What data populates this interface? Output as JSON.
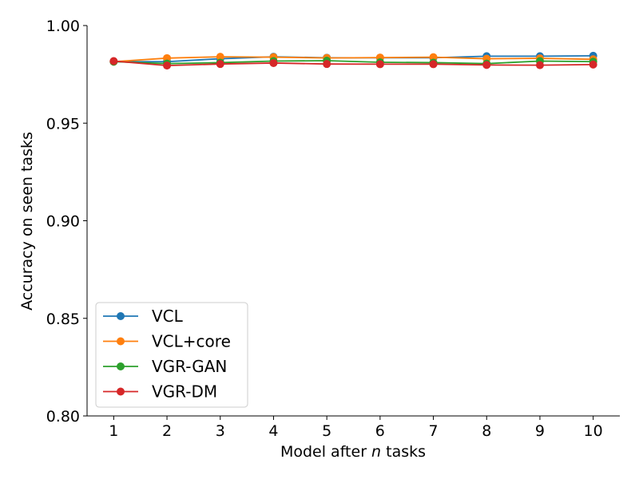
{
  "chart_data": {
    "type": "line",
    "title": "",
    "xlabel_prefix": "Model after ",
    "xlabel_var": "n",
    "xlabel_suffix": " tasks",
    "ylabel": "Accuracy on seen tasks",
    "x": [
      1,
      2,
      3,
      4,
      5,
      6,
      7,
      8,
      9,
      10
    ],
    "xlim": [
      0.5,
      10.5
    ],
    "ylim": [
      0.8,
      1.0
    ],
    "yticks": [
      0.8,
      0.85,
      0.9,
      0.95,
      1.0
    ],
    "ytick_labels": [
      "0.80",
      "0.85",
      "0.90",
      "0.95",
      "1.00"
    ],
    "xtick_labels": [
      "1",
      "2",
      "3",
      "4",
      "5",
      "6",
      "7",
      "8",
      "9",
      "10"
    ],
    "grid": false,
    "legend_position": "lower-left",
    "series": [
      {
        "name": "VCL",
        "color": "#1f77b4",
        "values": [
          0.9815,
          0.9815,
          0.983,
          0.984,
          0.9835,
          0.9835,
          0.9835,
          0.9843,
          0.9843,
          0.9845
        ]
      },
      {
        "name": "VCL+core",
        "color": "#ff7f0e",
        "values": [
          0.9815,
          0.9833,
          0.984,
          0.9838,
          0.9834,
          0.9836,
          0.9838,
          0.983,
          0.9832,
          0.9827
        ]
      },
      {
        "name": "VGR-GAN",
        "color": "#2ca02c",
        "values": [
          0.9815,
          0.9805,
          0.981,
          0.9818,
          0.982,
          0.9812,
          0.981,
          0.9805,
          0.9818,
          0.9815
        ]
      },
      {
        "name": "VGR-DM",
        "color": "#d62728",
        "values": [
          0.9818,
          0.9795,
          0.9803,
          0.9808,
          0.9803,
          0.9802,
          0.9802,
          0.9798,
          0.9797,
          0.98
        ]
      }
    ]
  }
}
